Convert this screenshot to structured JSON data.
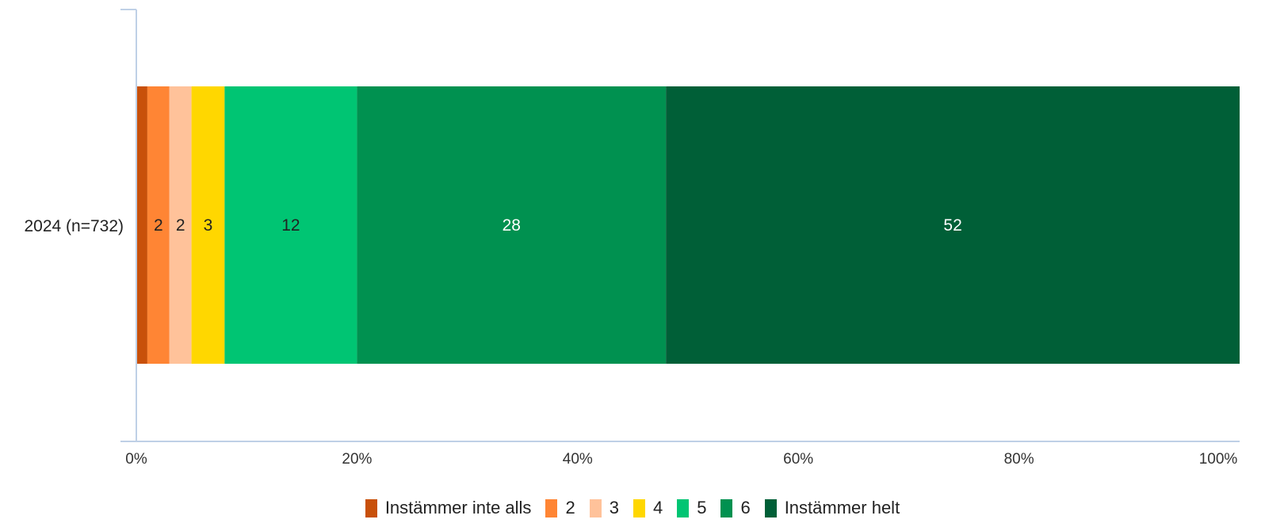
{
  "chart_data": {
    "type": "bar",
    "orientation": "horizontal",
    "stacked": true,
    "categories": [
      "2024 (n=732)"
    ],
    "series": [
      {
        "name": "Instämmer inte alls",
        "values": [
          1
        ],
        "label": "",
        "color": "#C8500A",
        "label_color": "#222222"
      },
      {
        "name": "2",
        "values": [
          2
        ],
        "label": "2",
        "color": "#FF8534",
        "label_color": "#222222"
      },
      {
        "name": "3",
        "values": [
          2
        ],
        "label": "2",
        "color": "#FFC29A",
        "label_color": "#222222"
      },
      {
        "name": "4",
        "values": [
          3
        ],
        "label": "3",
        "color": "#FFD700",
        "label_color": "#222222"
      },
      {
        "name": "5",
        "values": [
          12
        ],
        "label": "12",
        "color": "#00C573",
        "label_color": "#222222"
      },
      {
        "name": "6",
        "values": [
          28
        ],
        "label": "28",
        "color": "#009150",
        "label_color": "#ffffff"
      },
      {
        "name": "Instämmer helt",
        "values": [
          52
        ],
        "label": "52",
        "color": "#005F37",
        "label_color": "#ffffff"
      }
    ],
    "xlim": [
      0,
      100
    ],
    "x_ticks": [
      "0%",
      "20%",
      "40%",
      "60%",
      "80%",
      "100%"
    ],
    "grid": false,
    "legend_position": "bottom",
    "axis_color": "#BFD0E6"
  }
}
